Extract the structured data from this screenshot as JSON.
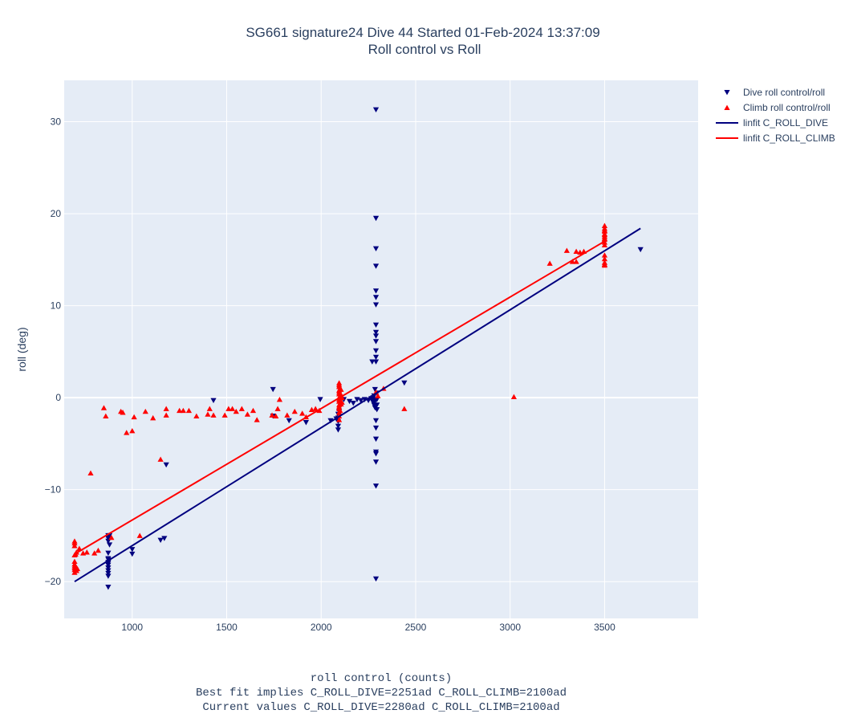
{
  "chart_data": {
    "type": "scatter",
    "title": [
      "SG661 signature24 Dive 44 Started 01-Feb-2024 13:37:09",
      "Roll control vs Roll"
    ],
    "xlabel": [
      "roll control (counts)",
      "Best fit implies C_ROLL_DIVE=2251ad C_ROLL_CLIMB=2100ad",
      "Current values C_ROLL_DIVE=2280ad C_ROLL_CLIMB=2100ad"
    ],
    "ylabel": "roll (deg)",
    "xlim": [
      640,
      3995
    ],
    "ylim": [
      -24,
      34.5
    ],
    "xticks": [
      1000,
      1500,
      2000,
      2500,
      3000,
      3500
    ],
    "yticks": [
      -20,
      -10,
      0,
      10,
      20,
      30
    ],
    "grid": true,
    "legend_position": "top-right",
    "colors": {
      "dive": "#00007f",
      "climb": "#ff0000",
      "plot_bg": "#e5ecf6",
      "grid": "#ffffff"
    },
    "series": [
      {
        "name": "Dive roll control/roll",
        "kind": "markers",
        "marker": "triangle-down",
        "x": [
          873,
          873,
          873,
          873,
          873,
          873,
          873,
          873,
          873,
          873,
          873,
          873,
          873,
          873,
          880,
          880,
          1000,
          1000,
          1150,
          1170,
          1180,
          1430,
          1745,
          1745,
          1830,
          1920,
          1995,
          2050,
          2080,
          2090,
          2090,
          2090,
          2090,
          2090,
          2095,
          2095,
          2120,
          2150,
          2170,
          2190,
          2210,
          2230,
          2250,
          2265,
          2270,
          2270,
          2270,
          2275,
          2275,
          2280,
          2280,
          2280,
          2285,
          2285,
          2285,
          2290,
          2290,
          2290,
          2290,
          2290,
          2290,
          2290,
          2290,
          2290,
          2290,
          2290,
          2290,
          2290,
          2290,
          2290,
          2290,
          2290,
          2290,
          2290,
          2290,
          2290,
          2290,
          2295,
          2295,
          2295,
          2295,
          2440,
          3690
        ],
        "y": [
          -15,
          -15.3,
          -15.6,
          -16.9,
          -17.6,
          -17.9,
          -18.2,
          -18.5,
          -18.8,
          -19.1,
          -19.4,
          -17.5,
          -18,
          -20.6,
          -15,
          -16,
          -16.5,
          -17,
          -15.5,
          -15.3,
          -7.3,
          -0.3,
          0.9,
          -2,
          -2.5,
          -2.7,
          -0.2,
          -2.5,
          -2.3,
          -1.8,
          -2.2,
          -2.6,
          -3.1,
          -3.5,
          -1.5,
          -2,
          -0.2,
          -0.4,
          -0.6,
          -0.2,
          -0.3,
          -0.2,
          -0.3,
          -0.1,
          -0.2,
          3.9,
          -0.3,
          0,
          -0.5,
          -0.8,
          0.2,
          -0.2,
          -1.1,
          0.9,
          -0.4,
          31.3,
          19.5,
          16.2,
          14.3,
          11.6,
          10.9,
          10.1,
          7.9,
          7.1,
          6.7,
          6.1,
          5.1,
          4.4,
          3.9,
          -2.5,
          -3.3,
          -4.5,
          -5.9,
          -6.1,
          -7,
          -9.6,
          -19.7,
          -0.8,
          -0.2,
          0.5,
          -1.3,
          1.6,
          16.1
        ]
      },
      {
        "name": "Climb roll control/roll",
        "kind": "markers",
        "marker": "triangle-up",
        "x": [
          695,
          695,
          695,
          695,
          695,
          695,
          695,
          695,
          695,
          695,
          700,
          700,
          705,
          705,
          710,
          720,
          740,
          760,
          780,
          800,
          820,
          850,
          860,
          890,
          940,
          950,
          970,
          1000,
          1010,
          1040,
          1070,
          1110,
          1150,
          1180,
          1180,
          1250,
          1270,
          1300,
          1340,
          1400,
          1410,
          1430,
          1490,
          1510,
          1530,
          1550,
          1580,
          1610,
          1640,
          1660,
          1740,
          1760,
          1770,
          1780,
          1820,
          1860,
          1900,
          1920,
          1950,
          1970,
          1990,
          2095,
          2095,
          2095,
          2095,
          2095,
          2095,
          2095,
          2095,
          2095,
          2095,
          2095,
          2095,
          2095,
          2095,
          2095,
          2100,
          2100,
          2100,
          2100,
          2100,
          2100,
          2105,
          2105,
          2105,
          2110,
          2110,
          2290,
          2300,
          2330,
          2440,
          3020,
          3210,
          3300,
          3330,
          3350,
          3350,
          3370,
          3390,
          3500,
          3500,
          3500,
          3500,
          3500,
          3500,
          3500,
          3500,
          3500,
          3500,
          3500,
          3500,
          3500,
          3500,
          3500,
          3500
        ],
        "y": [
          -15.6,
          -15.8,
          -16.1,
          -17.1,
          -17.8,
          -18.1,
          -18.3,
          -18.5,
          -18.7,
          -19,
          -17,
          -18.4,
          -16.8,
          -18.8,
          -18.6,
          -16.4,
          -16.9,
          -16.8,
          -8.2,
          -16.9,
          -16.6,
          -1.1,
          -2,
          -15.2,
          -1.5,
          -1.6,
          -3.8,
          -3.6,
          -2.1,
          -15,
          -1.5,
          -2.2,
          -6.7,
          -1.2,
          -1.9,
          -1.4,
          -1.4,
          -1.4,
          -2,
          -1.8,
          -1.2,
          -1.9,
          -1.9,
          -1.2,
          -1.2,
          -1.5,
          -1.2,
          -1.8,
          -1.4,
          -2.4,
          -1.9,
          -2,
          -1.2,
          -0.2,
          -1.9,
          -1.5,
          -1.7,
          -2.1,
          -1.3,
          -1.2,
          -1.4,
          1.6,
          1.2,
          0.8,
          0.4,
          0,
          -0.4,
          -0.8,
          -1.2,
          -1.6,
          -2,
          -2.4,
          1.4,
          0.6,
          -0.2,
          -1,
          1,
          0.2,
          -0.6,
          -1.4,
          0.5,
          -0.3,
          0.3,
          -0.7,
          0.9,
          0,
          -0.5,
          0.6,
          0.2,
          1,
          -1.2,
          0.1,
          14.6,
          16,
          14.8,
          15.9,
          14.8,
          15.8,
          15.9,
          18.7,
          18.4,
          18.1,
          17.8,
          17.5,
          17.2,
          16.9,
          16.6,
          15.5,
          15.1,
          14.7,
          14.4,
          14.5,
          18.2,
          17.7,
          17.3
        ],
        "note_unused": ""
      },
      {
        "name": "linfit C_ROLL_DIVE",
        "kind": "line",
        "x": [
          695,
          3690
        ],
        "y": [
          -20,
          18.4
        ]
      },
      {
        "name": "linfit C_ROLL_CLIMB",
        "kind": "line",
        "x": [
          695,
          3500
        ],
        "y": [
          -17,
          17
        ]
      }
    ]
  }
}
